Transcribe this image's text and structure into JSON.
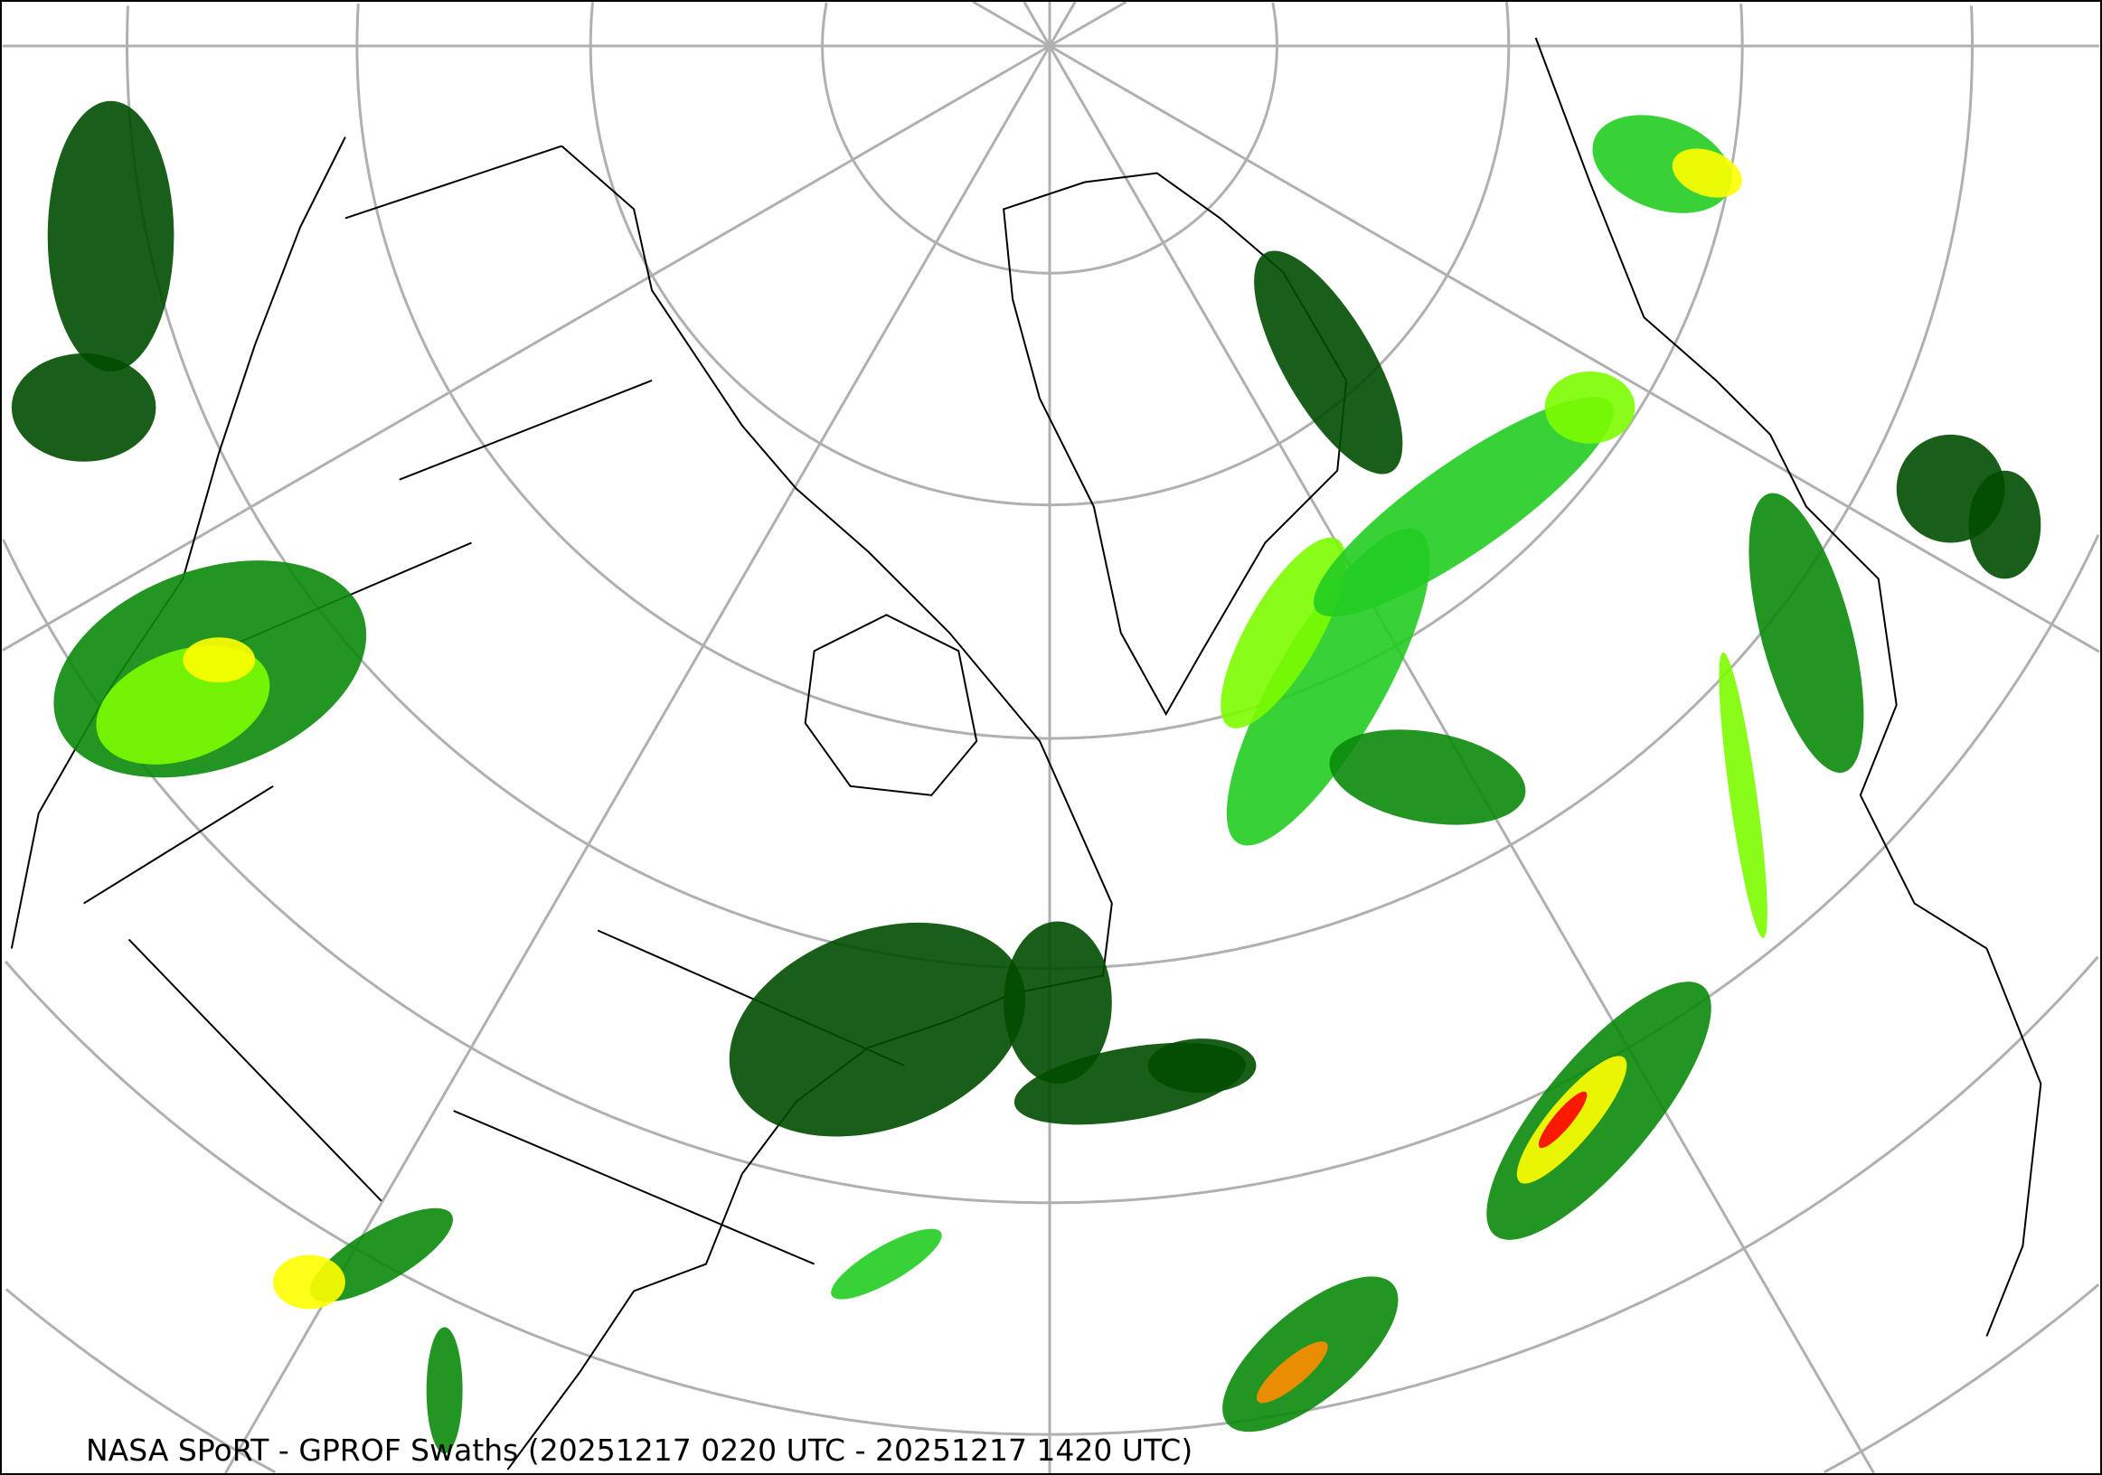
{
  "title": "NASA SPoRT - GPROF Swaths (20251217 0220 UTC - 20251217 1420 UTC)",
  "map": {
    "projection": "north-polar-stereographic",
    "graticule_color": "#b0b0b0",
    "border_color": "#000000",
    "precip_colors": [
      "#004d00",
      "#0a8a0a",
      "#22cc22",
      "#7cfc00",
      "#ffff00",
      "#ff8c00",
      "#ff0000"
    ]
  }
}
